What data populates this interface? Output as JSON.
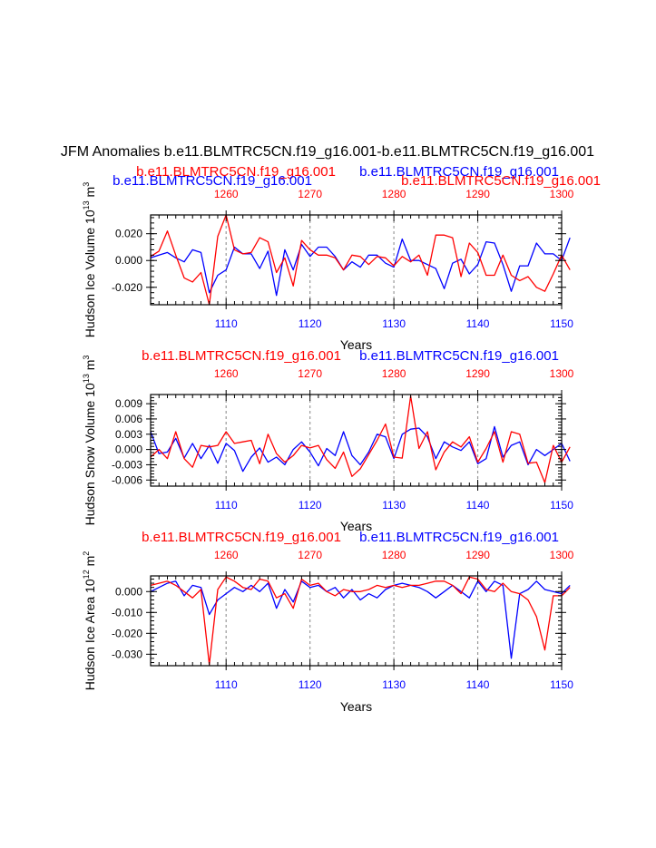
{
  "main_title": "JFM Anomalies b.e11.BLMTRC5CN.f19_g16.001-b.e11.BLMTRC5CN.f19_g16.001",
  "colors": {
    "blue": "#0000ff",
    "red": "#ff0000",
    "axis": "#000000",
    "grid": "#999999"
  },
  "chart_data": [
    {
      "type": "line",
      "ylabel": "Hudson Ice Volume 10",
      "ylabel_sup": "13",
      "ylabel_unit": " m",
      "ylabel_unit_sup": "3",
      "xlabel": "Years",
      "legend_red": "b.e11.BLMTRC5CN.f19_g16.001",
      "legend_blue": "b.e11.BLMTRC5CN.f19_g16.001",
      "legend_red_2": "b.e11.BLMTRC5CN.f19_g16.001",
      "legend_blue_2": "b.e11.BLMTRC5CN.f19_g16.001",
      "xlim_bottom": [
        1101,
        1150
      ],
      "xlim_top": [
        1251,
        1300
      ],
      "ylim": [
        -0.033,
        0.034
      ],
      "yticks": [
        -0.02,
        0.0,
        0.02
      ],
      "ytick_labels": [
        "-0.020",
        "0.000",
        "0.020"
      ],
      "xticks_bottom": [
        1110,
        1120,
        1130,
        1140,
        1150
      ],
      "xticks_top": [
        1260,
        1270,
        1280,
        1290,
        1300
      ],
      "series": [
        {
          "name": "blue",
          "x_start": 1101,
          "values": [
            0.002,
            0.004,
            0.006,
            0.002,
            -0.001,
            0.008,
            0.006,
            -0.024,
            -0.011,
            -0.007,
            0.01,
            0.005,
            0.005,
            -0.006,
            0.007,
            -0.026,
            0.008,
            -0.007,
            0.012,
            0.003,
            0.01,
            0.01,
            0.003,
            -0.007,
            -0.001,
            -0.005,
            0.004,
            0.004,
            -0.002,
            -0.005,
            0.016,
            0.0,
            0.0,
            -0.003,
            -0.006,
            -0.021,
            -0.002,
            0.001,
            -0.01,
            -0.003,
            0.014,
            0.013,
            -0.003,
            -0.023,
            -0.004,
            -0.004,
            0.013,
            0.005,
            0.005,
            0.0,
            0.017
          ]
        },
        {
          "name": "red",
          "x_start": 1101,
          "values": [
            0.003,
            0.007,
            0.022,
            0.004,
            -0.013,
            -0.016,
            -0.009,
            -0.033,
            0.018,
            0.034,
            0.008,
            0.005,
            0.006,
            0.017,
            0.014,
            -0.009,
            0.002,
            -0.019,
            0.015,
            0.008,
            0.004,
            0.004,
            0.002,
            -0.007,
            0.004,
            0.003,
            -0.003,
            0.003,
            0.002,
            -0.004,
            0.003,
            -0.001,
            0.004,
            -0.011,
            0.019,
            0.019,
            0.017,
            -0.012,
            0.013,
            0.006,
            -0.011,
            -0.011,
            0.004,
            -0.011,
            -0.015,
            -0.012,
            -0.02,
            -0.023,
            -0.01,
            0.004,
            -0.007
          ]
        }
      ]
    },
    {
      "type": "line",
      "ylabel": "Hudson Snow Volume 10",
      "ylabel_sup": "13",
      "ylabel_unit": " m",
      "ylabel_unit_sup": "3",
      "xlabel": "Years",
      "legend_red": "b.e11.BLMTRC5CN.f19_g16.001",
      "legend_blue": "b.e11.BLMTRC5CN.f19_g16.001",
      "xlim_bottom": [
        1101,
        1150
      ],
      "xlim_top": [
        1251,
        1300
      ],
      "ylim": [
        -0.0072,
        0.0108
      ],
      "yticks": [
        -0.006,
        -0.003,
        0.0,
        0.003,
        0.006,
        0.009
      ],
      "ytick_labels": [
        "-0.006",
        "-0.003",
        "0.000",
        "0.003",
        "0.006",
        "0.009"
      ],
      "xticks_bottom": [
        1110,
        1120,
        1130,
        1140,
        1150
      ],
      "xticks_top": [
        1260,
        1270,
        1280,
        1290,
        1300
      ],
      "series": [
        {
          "name": "blue",
          "x_start": 1101,
          "values": [
            0.0035,
            -0.0008,
            -0.0005,
            0.0022,
            -0.0017,
            0.0012,
            -0.0018,
            0.0008,
            -0.0027,
            0.0012,
            -0.0002,
            -0.0043,
            -0.0015,
            0.0003,
            -0.0025,
            -0.0015,
            -0.003,
            0.0,
            0.0015,
            -0.0005,
            -0.0032,
            0.0002,
            -0.0012,
            0.0035,
            -0.0012,
            -0.003,
            -0.0005,
            0.003,
            0.0025,
            -0.0018,
            0.003,
            0.004,
            0.0042,
            0.0025,
            -0.0018,
            0.0015,
            0.0005,
            -0.0002,
            0.0015,
            -0.0028,
            -0.0018,
            0.0045,
            -0.0015,
            0.0008,
            0.0015,
            -0.003,
            0.0,
            -0.0012,
            0.0,
            0.0012,
            -0.0023
          ]
        },
        {
          "name": "red",
          "x_start": 1101,
          "values": [
            -0.0015,
            0.0,
            -0.0018,
            0.0035,
            -0.0018,
            -0.0035,
            0.0008,
            0.0005,
            0.0008,
            0.0035,
            0.0012,
            0.0015,
            0.0018,
            -0.0028,
            0.003,
            -0.0008,
            -0.0025,
            -0.0012,
            0.0008,
            0.0003,
            0.0008,
            -0.002,
            -0.0037,
            -0.0005,
            -0.0053,
            -0.0038,
            -0.001,
            0.0018,
            0.005,
            -0.0015,
            -0.0017,
            0.0105,
            0.0002,
            0.0035,
            -0.004,
            -0.0005,
            0.0015,
            0.0005,
            0.0025,
            -0.0025,
            0.0002,
            0.0035,
            -0.0025,
            0.0035,
            0.003,
            -0.0027,
            -0.0025,
            -0.0065,
            0.0008,
            -0.0025,
            0.0005
          ]
        }
      ]
    },
    {
      "type": "line",
      "ylabel": "Hudson Ice Area 10",
      "ylabel_sup": "12",
      "ylabel_unit": " m",
      "ylabel_unit_sup": "2",
      "xlabel": "Years",
      "legend_red": "b.e11.BLMTRC5CN.f19_g16.001",
      "legend_blue": "b.e11.BLMTRC5CN.f19_g16.001",
      "xlim_bottom": [
        1101,
        1150
      ],
      "xlim_top": [
        1251,
        1300
      ],
      "ylim": [
        -0.0355,
        0.0075
      ],
      "yticks": [
        -0.03,
        -0.02,
        -0.01,
        0.0
      ],
      "ytick_labels": [
        "-0.030",
        "-0.020",
        "-0.010",
        "0.000"
      ],
      "xticks_bottom": [
        1110,
        1120,
        1130,
        1140,
        1150
      ],
      "xticks_top": [
        1260,
        1270,
        1280,
        1290,
        1300
      ],
      "series": [
        {
          "name": "blue",
          "x_start": 1101,
          "values": [
            0.0,
            0.002,
            0.004,
            0.005,
            -0.002,
            0.003,
            0.002,
            -0.011,
            -0.004,
            -0.001,
            0.002,
            0.0,
            0.003,
            0.0,
            0.004,
            -0.008,
            0.001,
            -0.005,
            0.005,
            0.002,
            0.003,
            0.0,
            0.002,
            -0.003,
            0.001,
            -0.004,
            -0.001,
            -0.003,
            0.001,
            0.003,
            0.004,
            0.003,
            0.002,
            0.0,
            -0.003,
            0.0,
            0.003,
            0.0,
            -0.003,
            0.005,
            0.0,
            0.005,
            0.003,
            -0.032,
            -0.001,
            0.001,
            0.005,
            0.001,
            0.0,
            -0.001,
            0.003
          ]
        },
        {
          "name": "red",
          "x_start": 1101,
          "values": [
            0.003,
            0.004,
            0.005,
            0.003,
            0.0,
            -0.003,
            0.001,
            -0.035,
            0.001,
            0.007,
            0.005,
            0.002,
            0.001,
            0.006,
            0.005,
            -0.003,
            -0.001,
            -0.008,
            0.006,
            0.003,
            0.004,
            0.0,
            -0.002,
            0.001,
            0.0,
            0.0,
            0.001,
            0.003,
            0.002,
            0.003,
            0.002,
            0.003,
            0.003,
            0.004,
            0.005,
            0.005,
            0.003,
            -0.001,
            0.007,
            0.006,
            0.001,
            0.0,
            0.004,
            0.0,
            -0.001,
            -0.004,
            -0.012,
            -0.028,
            -0.002,
            -0.002,
            0.002
          ]
        }
      ]
    }
  ]
}
